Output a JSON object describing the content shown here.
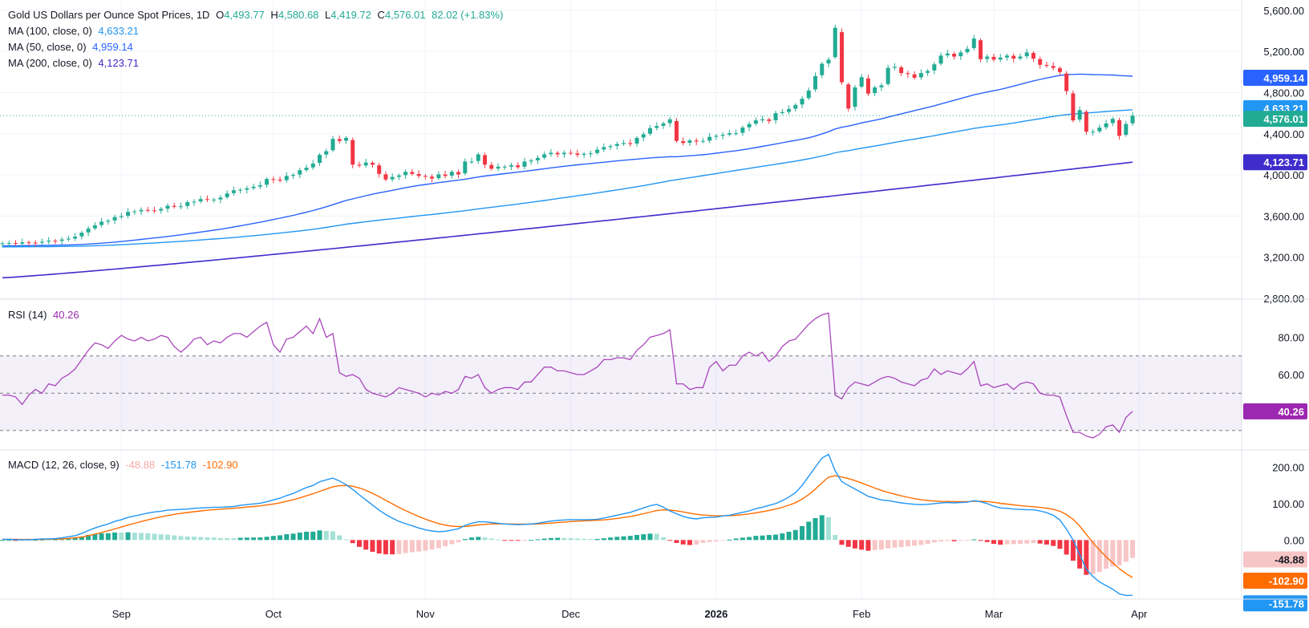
{
  "legend": {
    "title": "Gold US Dollars per Ounce Spot Prices, 1D",
    "o_label": "O",
    "o_value": "4,493.77",
    "h_label": "H",
    "h_value": "4,580.68",
    "l_label": "L",
    "l_value": "4,419.72",
    "c_label": "C",
    "c_value": "4,576.01",
    "change": "82.02 (+1.83%)",
    "ma100_label": "MA (100, close, 0)",
    "ma100_value": "4,633.21",
    "ma50_label": "MA (50, close, 0)",
    "ma50_value": "4,959.14",
    "ma200_label": "MA (200, close, 0)",
    "ma200_value": "4,123.71",
    "rsi_label": "RSI (14)",
    "rsi_value": "40.26",
    "macd_label": "MACD (12, 26, close, 9)",
    "macd_hist_value": "-48.88",
    "macd_value": "-151.78",
    "macd_signal_value": "-102.90"
  },
  "colors": {
    "up": "#22ab94",
    "down": "#f23645",
    "ma100": "#2196f3",
    "ma50": "#2962ff",
    "ma200": "#3f2ccc",
    "rsi": "#9c27b0",
    "macd": "#2196f3",
    "signal": "#ff6d00",
    "hist_up_strong": "#22ab94",
    "hist_up_weak": "#a5e1d6",
    "hist_down_strong": "#f23645",
    "hist_down_weak": "#f8c5c6"
  },
  "chart_data": [
    {
      "type": "candlestick",
      "title": "Gold US Dollars per Ounce Spot Prices, 1D",
      "ylim": [
        2800,
        5700
      ],
      "y_ticks": [
        "5,600.00",
        "5,200.00",
        "4,800.00",
        "4,400.00",
        "4,000.00",
        "3,600.00",
        "3,200.00",
        "2,800.00"
      ],
      "y_tick_values": [
        5600,
        5200,
        4800,
        4400,
        4000,
        3600,
        3200,
        2800
      ],
      "x_labels": [
        "Sep",
        "Oct",
        "Nov",
        "Dec",
        "2026",
        "Feb",
        "Mar",
        "Apr"
      ],
      "x_label_index": [
        18,
        41,
        64,
        86,
        108,
        130,
        150,
        172
      ],
      "last_close": 4576.01,
      "close": [
        3335,
        3338,
        3330,
        3345,
        3342,
        3340,
        3350,
        3360,
        3358,
        3372,
        3380,
        3400,
        3438,
        3478,
        3510,
        3545,
        3555,
        3590,
        3600,
        3640,
        3645,
        3660,
        3655,
        3652,
        3670,
        3700,
        3690,
        3695,
        3735,
        3740,
        3765,
        3760,
        3760,
        3780,
        3820,
        3850,
        3855,
        3870,
        3885,
        3900,
        3960,
        3955,
        3945,
        3990,
        4000,
        4045,
        4070,
        4110,
        4195,
        4230,
        4350,
        4330,
        4360,
        4100,
        4090,
        4120,
        4100,
        4010,
        3955,
        3980,
        3995,
        4030,
        4010,
        3990,
        3985,
        3965,
        4005,
        3990,
        4030,
        4005,
        4130,
        4130,
        4200,
        4100,
        4060,
        4080,
        4080,
        4095,
        4075,
        4130,
        4140,
        4165,
        4200,
        4215,
        4200,
        4215,
        4210,
        4195,
        4205,
        4210,
        4245,
        4270,
        4280,
        4300,
        4310,
        4300,
        4360,
        4395,
        4455,
        4475,
        4500,
        4540,
        4330,
        4310,
        4335,
        4325,
        4330,
        4370,
        4380,
        4390,
        4405,
        4405,
        4460,
        4495,
        4530,
        4540,
        4525,
        4600,
        4610,
        4640,
        4680,
        4740,
        4820,
        4960,
        5080,
        5120,
        5430,
        4900,
        4645,
        4850,
        4950,
        4790,
        4850,
        4870,
        5040,
        5050,
        4990,
        4980,
        4945,
        4990,
        5010,
        5075,
        5160,
        5180,
        5150,
        5190,
        5225,
        5325,
        5125,
        5150,
        5120,
        5140,
        5160,
        5130,
        5150,
        5190,
        5130,
        5070,
        5060,
        5040,
        5000,
        4815,
        4530,
        4630,
        4420,
        4420,
        4460,
        4500,
        4545,
        4380,
        4495,
        4576
      ]
    },
    {
      "type": "line",
      "title": "RSI (14)",
      "ylim": [
        20,
        100
      ],
      "y_ticks": [
        "80.00",
        "60.00"
      ],
      "y_tick_values": [
        80,
        60
      ],
      "bands": [
        70,
        50,
        30
      ],
      "values": [
        49,
        49,
        48,
        44,
        49,
        52,
        50,
        55,
        54,
        58,
        60,
        63,
        68,
        73,
        77,
        76,
        74,
        78,
        81,
        79,
        78,
        80,
        78,
        79,
        81,
        80,
        75,
        72,
        75,
        79,
        80,
        76,
        78,
        77,
        80,
        82,
        82,
        80,
        83,
        86,
        88,
        76,
        72,
        79,
        80,
        83,
        86,
        82,
        90,
        80,
        82,
        61,
        59,
        60,
        58,
        52,
        50,
        49,
        48,
        50,
        53,
        52,
        51,
        50,
        48,
        50,
        49,
        51,
        50,
        52,
        59,
        58,
        60,
        53,
        50,
        52,
        53,
        53,
        52,
        56,
        56,
        60,
        64,
        64,
        62,
        62,
        61,
        60,
        60,
        62,
        64,
        68,
        68,
        69,
        69,
        68,
        73,
        76,
        80,
        81,
        82,
        84,
        55,
        55,
        52,
        53,
        53,
        64,
        67,
        62,
        65,
        65,
        70,
        72,
        70,
        72,
        67,
        70,
        75,
        78,
        79,
        83,
        87,
        90,
        92,
        93,
        49,
        47,
        53,
        56,
        55,
        54,
        56,
        58,
        59,
        58,
        56,
        55,
        54,
        57,
        58,
        63,
        60,
        62,
        61,
        60,
        63,
        67,
        54,
        55,
        53,
        54,
        55,
        52,
        55,
        56,
        55,
        50,
        49,
        49,
        48,
        38,
        29,
        29,
        27,
        26,
        28,
        32,
        33,
        29,
        37,
        40.26
      ]
    },
    {
      "type": "line",
      "title": "MACD (12, 26, close, 9)",
      "ylim": [
        -160,
        245
      ],
      "y_ticks": [
        "200.00",
        "100.00",
        "0.00"
      ],
      "y_tick_values": [
        200,
        100,
        0
      ],
      "macd": [
        2,
        2,
        1,
        1,
        1,
        2,
        3,
        3,
        4,
        6,
        9,
        12,
        18,
        26,
        33,
        39,
        44,
        51,
        56,
        62,
        66,
        70,
        74,
        77,
        79,
        82,
        83,
        84,
        85,
        87,
        88,
        89,
        90,
        90,
        91,
        92,
        95,
        97,
        99,
        101,
        105,
        110,
        115,
        122,
        128,
        136,
        144,
        150,
        160,
        165,
        170,
        162,
        152,
        139,
        124,
        110,
        96,
        82,
        70,
        60,
        51,
        45,
        39,
        33,
        28,
        25,
        23,
        24,
        27,
        31,
        40,
        46,
        50,
        50,
        48,
        46,
        44,
        43,
        42,
        43,
        44,
        46,
        49,
        52,
        54,
        55,
        56,
        56,
        56,
        56,
        57,
        60,
        64,
        68,
        72,
        76,
        82,
        88,
        94,
        98,
        90,
        80,
        72,
        65,
        60,
        58,
        61,
        62,
        63,
        66,
        68,
        72,
        76,
        80,
        86,
        90,
        95,
        100,
        108,
        118,
        130,
        150,
        175,
        200,
        225,
        235,
        190,
        160,
        150,
        140,
        130,
        120,
        115,
        110,
        108,
        105,
        102,
        100,
        98,
        97,
        98,
        100,
        102,
        103,
        102,
        103,
        104,
        108,
        105,
        100,
        93,
        88,
        87,
        85,
        84,
        83,
        83,
        80,
        75,
        68,
        55,
        30,
        0,
        -40,
        -80,
        -100,
        -115,
        -125,
        -135,
        -148,
        -152,
        -151.78
      ]
    }
  ]
}
